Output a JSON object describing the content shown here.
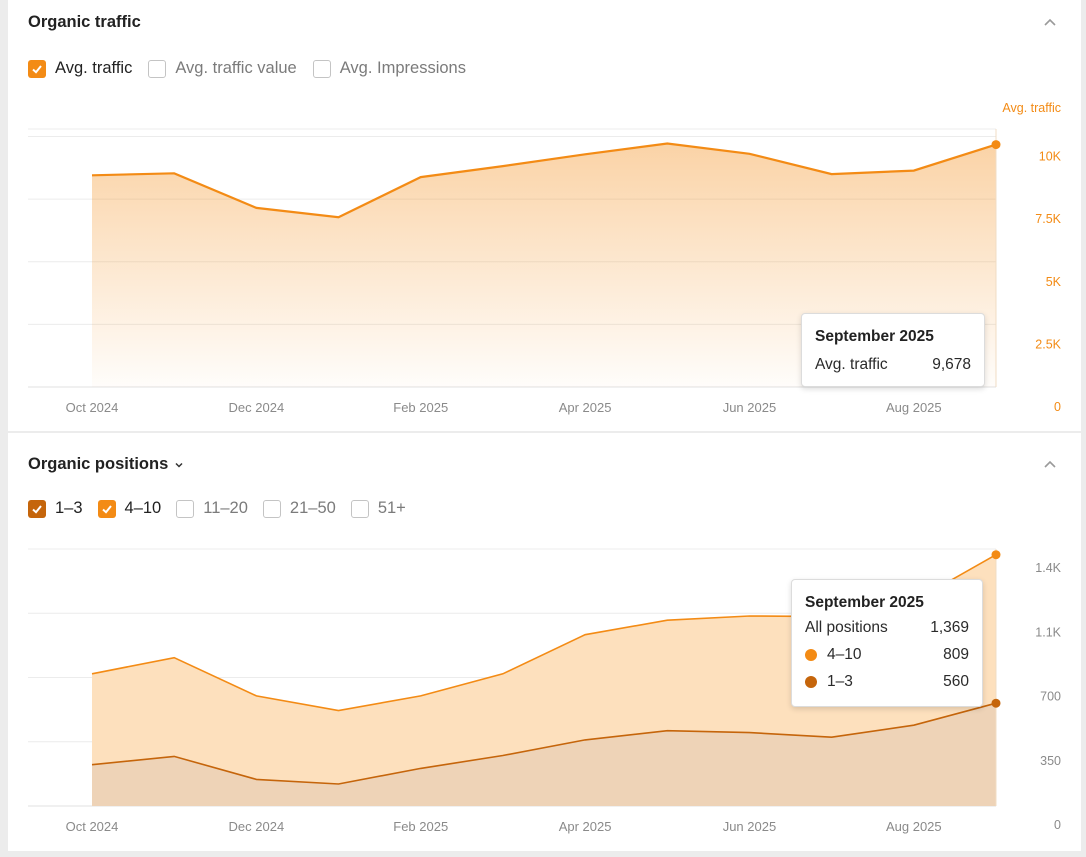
{
  "panels": {
    "traffic": {
      "title": "Organic traffic",
      "filters": [
        {
          "label": "Avg. traffic",
          "checked": true,
          "color": "#f38b15"
        },
        {
          "label": "Avg. traffic value",
          "checked": false
        },
        {
          "label": "Avg. Impressions",
          "checked": false
        }
      ],
      "tooltip": {
        "title": "September 2025",
        "rows": [
          {
            "label": "Avg. traffic",
            "value": "9,678"
          }
        ]
      }
    },
    "positions": {
      "title": "Organic positions",
      "filters": [
        {
          "label": "1–3",
          "checked": true,
          "color": "#c5650b"
        },
        {
          "label": "4–10",
          "checked": true,
          "color": "#f38b15"
        },
        {
          "label": "11–20",
          "checked": false
        },
        {
          "label": "21–50",
          "checked": false
        },
        {
          "label": "51+",
          "checked": false
        }
      ],
      "tooltip": {
        "title": "September 2025",
        "rows": [
          {
            "label": "All positions",
            "value": "1,369"
          },
          {
            "label": "4–10",
            "value": "809",
            "color": "#f38b15"
          },
          {
            "label": "1–3",
            "value": "560",
            "color": "#c5650b"
          }
        ]
      }
    }
  },
  "chart_data": [
    {
      "type": "area",
      "title": "Organic traffic",
      "axis_title": "Avg. traffic",
      "x": [
        "Oct 2024",
        "Nov 2024",
        "Dec 2024",
        "Jan 2025",
        "Feb 2025",
        "Mar 2025",
        "Apr 2025",
        "May 2025",
        "Jun 2025",
        "Jul 2025",
        "Aug 2025",
        "Sep 2025"
      ],
      "x_tick_labels": [
        "Oct 2024",
        "Dec 2024",
        "Feb 2025",
        "Apr 2025",
        "Jun 2025",
        "Aug 2025"
      ],
      "y_tick_labels": [
        "0",
        "2.5K",
        "5K",
        "7.5K",
        "10K"
      ],
      "ylim": [
        0,
        10300
      ],
      "series": [
        {
          "name": "Avg. traffic",
          "color": "#f38b15",
          "values": [
            8450,
            8530,
            7150,
            6780,
            8380,
            8820,
            9290,
            9720,
            9310,
            8500,
            8640,
            9678
          ]
        }
      ],
      "grid": true
    },
    {
      "type": "area",
      "title": "Organic positions",
      "stacked": true,
      "x": [
        "Oct 2024",
        "Nov 2024",
        "Dec 2024",
        "Jan 2025",
        "Feb 2025",
        "Mar 2025",
        "Apr 2025",
        "May 2025",
        "Jun 2025",
        "Jul 2025",
        "Aug 2025",
        "Sep 2025"
      ],
      "x_tick_labels": [
        "Oct 2024",
        "Dec 2024",
        "Feb 2025",
        "Apr 2025",
        "Jun 2025",
        "Aug 2025"
      ],
      "y_tick_labels": [
        "0",
        "350",
        "700",
        "1.1K",
        "1.4K"
      ],
      "ylim": [
        0,
        1400
      ],
      "series": [
        {
          "name": "1–3",
          "color": "#c5650b",
          "values": [
            225,
            270,
            145,
            120,
            205,
            275,
            360,
            410,
            400,
            375,
            440,
            560
          ]
        },
        {
          "name": "4–10",
          "color": "#f38b15",
          "values": [
            495,
            538,
            455,
            400,
            395,
            445,
            573,
            602,
            635,
            657,
            675,
            809
          ]
        }
      ],
      "grid": true
    }
  ]
}
